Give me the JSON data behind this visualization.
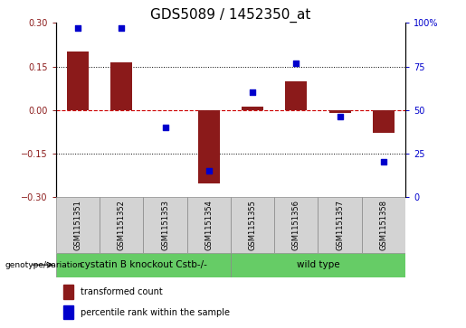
{
  "title": "GDS5089 / 1452350_at",
  "samples": [
    "GSM1151351",
    "GSM1151352",
    "GSM1151353",
    "GSM1151354",
    "GSM1151355",
    "GSM1151356",
    "GSM1151357",
    "GSM1151358"
  ],
  "red_values": [
    0.2,
    0.165,
    0.0,
    -0.255,
    0.01,
    0.1,
    -0.01,
    -0.08
  ],
  "blue_values": [
    97,
    97,
    40,
    15,
    60,
    77,
    46,
    20
  ],
  "groups": [
    {
      "label": "cystatin B knockout Cstb-/-",
      "start": 0,
      "end": 4,
      "color": "#77dd77"
    },
    {
      "label": "wild type",
      "start": 4,
      "end": 8,
      "color": "#77dd77"
    }
  ],
  "group_label": "genotype/variation",
  "ylim_left": [
    -0.3,
    0.3
  ],
  "ylim_right": [
    0,
    100
  ],
  "yticks_left": [
    -0.3,
    -0.15,
    0,
    0.15,
    0.3
  ],
  "yticks_right": [
    0,
    25,
    50,
    75,
    100
  ],
  "red_color": "#8B1A1A",
  "blue_color": "#0000CC",
  "hline_color": "#CC0000",
  "dotted_color": "#000000",
  "cell_color": "#d3d3d3",
  "group_color": "#66cc66",
  "legend_red_label": "transformed count",
  "legend_blue_label": "percentile rank within the sample",
  "title_fontsize": 11,
  "tick_fontsize": 7,
  "sample_fontsize": 6,
  "legend_fontsize": 7,
  "group_fontsize": 7.5
}
